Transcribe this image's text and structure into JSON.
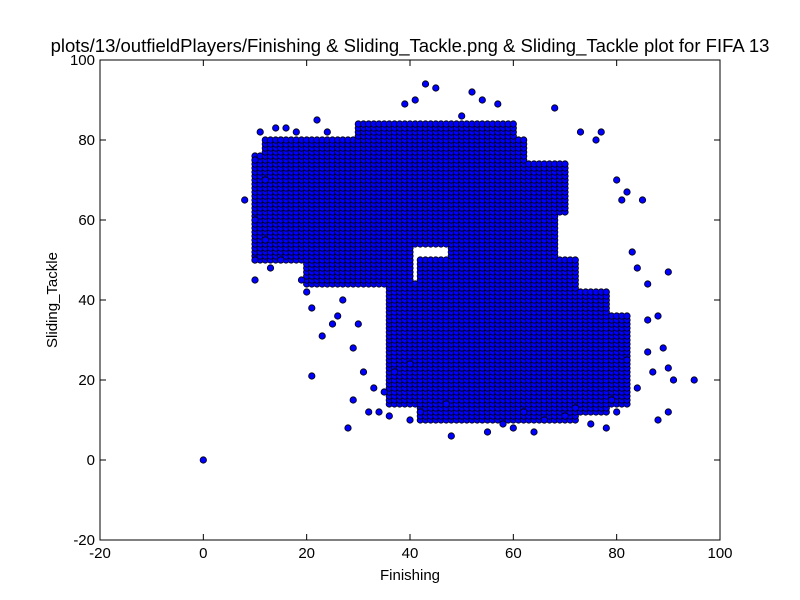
{
  "chart_data": {
    "type": "scatter",
    "title": "plots/13/outfieldPlayers/Finishing & Sliding_Tackle.png & Sliding_Tackle plot for FIFA 13",
    "xlabel": "Finishing",
    "ylabel": "Sliding_Tackle",
    "xlim": [
      -20,
      100
    ],
    "ylim": [
      -20,
      100
    ],
    "xticks": [
      -20,
      0,
      20,
      40,
      60,
      80,
      100
    ],
    "yticks": [
      -20,
      0,
      20,
      40,
      60,
      80,
      100
    ],
    "grid": false,
    "legend": "none",
    "marker_color": "#0000ff",
    "marker_edge_color": "#000000",
    "series": [
      {
        "points": [
          [
            0,
            0
          ],
          [
            8,
            65
          ],
          [
            10,
            45
          ],
          [
            10,
            50
          ],
          [
            10,
            60
          ],
          [
            10,
            75
          ],
          [
            11,
            82
          ],
          [
            12,
            55
          ],
          [
            12,
            70
          ],
          [
            13,
            48
          ],
          [
            14,
            83
          ],
          [
            15,
            80
          ],
          [
            15,
            50
          ],
          [
            16,
            83
          ],
          [
            18,
            82
          ],
          [
            19,
            45
          ],
          [
            20,
            42
          ],
          [
            21,
            21
          ],
          [
            21,
            38
          ],
          [
            22,
            85
          ],
          [
            23,
            31
          ],
          [
            24,
            82
          ],
          [
            25,
            34
          ],
          [
            26,
            36
          ],
          [
            27,
            40
          ],
          [
            28,
            8
          ],
          [
            29,
            28
          ],
          [
            29,
            15
          ],
          [
            30,
            34
          ],
          [
            31,
            22
          ],
          [
            32,
            12
          ],
          [
            33,
            18
          ],
          [
            34,
            12
          ],
          [
            35,
            17
          ],
          [
            36,
            11
          ],
          [
            37,
            22
          ],
          [
            39,
            89
          ],
          [
            40,
            10
          ],
          [
            40,
            24
          ],
          [
            41,
            90
          ],
          [
            42,
            12
          ],
          [
            43,
            94
          ],
          [
            45,
            93
          ],
          [
            47,
            14
          ],
          [
            48,
            6
          ],
          [
            50,
            86
          ],
          [
            52,
            92
          ],
          [
            54,
            90
          ],
          [
            55,
            7
          ],
          [
            57,
            89
          ],
          [
            58,
            9
          ],
          [
            60,
            8
          ],
          [
            62,
            12
          ],
          [
            64,
            7
          ],
          [
            66,
            10
          ],
          [
            68,
            88
          ],
          [
            70,
            11
          ],
          [
            72,
            13
          ],
          [
            73,
            82
          ],
          [
            75,
            9
          ],
          [
            76,
            80
          ],
          [
            77,
            82
          ],
          [
            78,
            8
          ],
          [
            80,
            70
          ],
          [
            81,
            65
          ],
          [
            82,
            67
          ],
          [
            83,
            52
          ],
          [
            84,
            48
          ],
          [
            85,
            65
          ],
          [
            86,
            44
          ],
          [
            86,
            35
          ],
          [
            87,
            22
          ],
          [
            88,
            10
          ],
          [
            88,
            36
          ],
          [
            89,
            28
          ],
          [
            90,
            47
          ],
          [
            90,
            23
          ],
          [
            91,
            20
          ],
          [
            90,
            12
          ],
          [
            95,
            20
          ],
          [
            80,
            12
          ],
          [
            82,
            25
          ],
          [
            84,
            18
          ],
          [
            86,
            27
          ],
          [
            79,
            15
          ]
        ]
      },
      {
        "region_points_note": ""
      }
    ]
  }
}
